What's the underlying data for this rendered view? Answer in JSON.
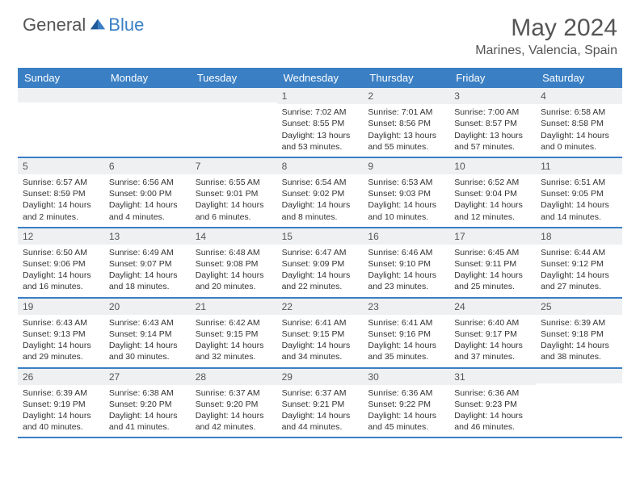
{
  "logo": {
    "text_gray": "General",
    "text_blue": "Blue"
  },
  "title": "May 2024",
  "subtitle": "Marines, Valencia, Spain",
  "colors": {
    "header_bg": "#3a7fc4",
    "header_text": "#ffffff",
    "daynum_bg": "#eef0f2",
    "text": "#333333",
    "page_bg": "#ffffff",
    "rule": "#3a7fc4"
  },
  "day_headers": [
    "Sunday",
    "Monday",
    "Tuesday",
    "Wednesday",
    "Thursday",
    "Friday",
    "Saturday"
  ],
  "weeks": [
    [
      {
        "n": "",
        "sr": "",
        "ss": "",
        "dl": ""
      },
      {
        "n": "",
        "sr": "",
        "ss": "",
        "dl": ""
      },
      {
        "n": "",
        "sr": "",
        "ss": "",
        "dl": ""
      },
      {
        "n": "1",
        "sr": "Sunrise: 7:02 AM",
        "ss": "Sunset: 8:55 PM",
        "dl": "Daylight: 13 hours and 53 minutes."
      },
      {
        "n": "2",
        "sr": "Sunrise: 7:01 AM",
        "ss": "Sunset: 8:56 PM",
        "dl": "Daylight: 13 hours and 55 minutes."
      },
      {
        "n": "3",
        "sr": "Sunrise: 7:00 AM",
        "ss": "Sunset: 8:57 PM",
        "dl": "Daylight: 13 hours and 57 minutes."
      },
      {
        "n": "4",
        "sr": "Sunrise: 6:58 AM",
        "ss": "Sunset: 8:58 PM",
        "dl": "Daylight: 14 hours and 0 minutes."
      }
    ],
    [
      {
        "n": "5",
        "sr": "Sunrise: 6:57 AM",
        "ss": "Sunset: 8:59 PM",
        "dl": "Daylight: 14 hours and 2 minutes."
      },
      {
        "n": "6",
        "sr": "Sunrise: 6:56 AM",
        "ss": "Sunset: 9:00 PM",
        "dl": "Daylight: 14 hours and 4 minutes."
      },
      {
        "n": "7",
        "sr": "Sunrise: 6:55 AM",
        "ss": "Sunset: 9:01 PM",
        "dl": "Daylight: 14 hours and 6 minutes."
      },
      {
        "n": "8",
        "sr": "Sunrise: 6:54 AM",
        "ss": "Sunset: 9:02 PM",
        "dl": "Daylight: 14 hours and 8 minutes."
      },
      {
        "n": "9",
        "sr": "Sunrise: 6:53 AM",
        "ss": "Sunset: 9:03 PM",
        "dl": "Daylight: 14 hours and 10 minutes."
      },
      {
        "n": "10",
        "sr": "Sunrise: 6:52 AM",
        "ss": "Sunset: 9:04 PM",
        "dl": "Daylight: 14 hours and 12 minutes."
      },
      {
        "n": "11",
        "sr": "Sunrise: 6:51 AM",
        "ss": "Sunset: 9:05 PM",
        "dl": "Daylight: 14 hours and 14 minutes."
      }
    ],
    [
      {
        "n": "12",
        "sr": "Sunrise: 6:50 AM",
        "ss": "Sunset: 9:06 PM",
        "dl": "Daylight: 14 hours and 16 minutes."
      },
      {
        "n": "13",
        "sr": "Sunrise: 6:49 AM",
        "ss": "Sunset: 9:07 PM",
        "dl": "Daylight: 14 hours and 18 minutes."
      },
      {
        "n": "14",
        "sr": "Sunrise: 6:48 AM",
        "ss": "Sunset: 9:08 PM",
        "dl": "Daylight: 14 hours and 20 minutes."
      },
      {
        "n": "15",
        "sr": "Sunrise: 6:47 AM",
        "ss": "Sunset: 9:09 PM",
        "dl": "Daylight: 14 hours and 22 minutes."
      },
      {
        "n": "16",
        "sr": "Sunrise: 6:46 AM",
        "ss": "Sunset: 9:10 PM",
        "dl": "Daylight: 14 hours and 23 minutes."
      },
      {
        "n": "17",
        "sr": "Sunrise: 6:45 AM",
        "ss": "Sunset: 9:11 PM",
        "dl": "Daylight: 14 hours and 25 minutes."
      },
      {
        "n": "18",
        "sr": "Sunrise: 6:44 AM",
        "ss": "Sunset: 9:12 PM",
        "dl": "Daylight: 14 hours and 27 minutes."
      }
    ],
    [
      {
        "n": "19",
        "sr": "Sunrise: 6:43 AM",
        "ss": "Sunset: 9:13 PM",
        "dl": "Daylight: 14 hours and 29 minutes."
      },
      {
        "n": "20",
        "sr": "Sunrise: 6:43 AM",
        "ss": "Sunset: 9:14 PM",
        "dl": "Daylight: 14 hours and 30 minutes."
      },
      {
        "n": "21",
        "sr": "Sunrise: 6:42 AM",
        "ss": "Sunset: 9:15 PM",
        "dl": "Daylight: 14 hours and 32 minutes."
      },
      {
        "n": "22",
        "sr": "Sunrise: 6:41 AM",
        "ss": "Sunset: 9:15 PM",
        "dl": "Daylight: 14 hours and 34 minutes."
      },
      {
        "n": "23",
        "sr": "Sunrise: 6:41 AM",
        "ss": "Sunset: 9:16 PM",
        "dl": "Daylight: 14 hours and 35 minutes."
      },
      {
        "n": "24",
        "sr": "Sunrise: 6:40 AM",
        "ss": "Sunset: 9:17 PM",
        "dl": "Daylight: 14 hours and 37 minutes."
      },
      {
        "n": "25",
        "sr": "Sunrise: 6:39 AM",
        "ss": "Sunset: 9:18 PM",
        "dl": "Daylight: 14 hours and 38 minutes."
      }
    ],
    [
      {
        "n": "26",
        "sr": "Sunrise: 6:39 AM",
        "ss": "Sunset: 9:19 PM",
        "dl": "Daylight: 14 hours and 40 minutes."
      },
      {
        "n": "27",
        "sr": "Sunrise: 6:38 AM",
        "ss": "Sunset: 9:20 PM",
        "dl": "Daylight: 14 hours and 41 minutes."
      },
      {
        "n": "28",
        "sr": "Sunrise: 6:37 AM",
        "ss": "Sunset: 9:20 PM",
        "dl": "Daylight: 14 hours and 42 minutes."
      },
      {
        "n": "29",
        "sr": "Sunrise: 6:37 AM",
        "ss": "Sunset: 9:21 PM",
        "dl": "Daylight: 14 hours and 44 minutes."
      },
      {
        "n": "30",
        "sr": "Sunrise: 6:36 AM",
        "ss": "Sunset: 9:22 PM",
        "dl": "Daylight: 14 hours and 45 minutes."
      },
      {
        "n": "31",
        "sr": "Sunrise: 6:36 AM",
        "ss": "Sunset: 9:23 PM",
        "dl": "Daylight: 14 hours and 46 minutes."
      },
      {
        "n": "",
        "sr": "",
        "ss": "",
        "dl": ""
      }
    ]
  ]
}
